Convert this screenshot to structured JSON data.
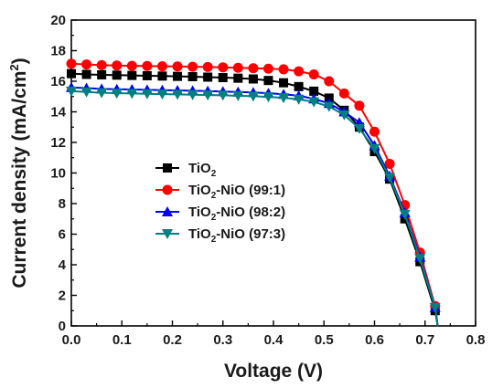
{
  "chart_data": {
    "type": "line",
    "xlabel": "Voltage (V)",
    "ylabel_main": "Current density (mA/cm",
    "ylabel_sup": "2",
    "ylabel_close": ")",
    "xlim": [
      0.0,
      0.8
    ],
    "ylim": [
      0,
      20
    ],
    "xticks": [
      "0.0",
      "0.1",
      "0.2",
      "0.3",
      "0.4",
      "0.5",
      "0.6",
      "0.7",
      "0.8"
    ],
    "yticks": [
      "0",
      "2",
      "4",
      "6",
      "8",
      "10",
      "12",
      "14",
      "16",
      "18",
      "20"
    ],
    "grid": false,
    "legend_position": "center-left",
    "series": [
      {
        "name": "TiO2",
        "legend_parts": [
          {
            "t": "TiO"
          },
          {
            "t": "2",
            "sub": true
          }
        ],
        "color": "#000000",
        "marker": "square",
        "x": [
          0.0,
          0.03,
          0.06,
          0.09,
          0.12,
          0.15,
          0.18,
          0.21,
          0.24,
          0.27,
          0.3,
          0.33,
          0.36,
          0.39,
          0.42,
          0.45,
          0.48,
          0.51,
          0.54,
          0.57,
          0.6,
          0.63,
          0.66,
          0.69,
          0.72,
          0.725
        ],
        "y": [
          16.5,
          16.45,
          16.42,
          16.4,
          16.38,
          16.36,
          16.34,
          16.32,
          16.3,
          16.27,
          16.24,
          16.2,
          16.15,
          16.05,
          15.9,
          15.65,
          15.35,
          14.9,
          14.1,
          13.0,
          11.4,
          9.6,
          7.0,
          4.2,
          1.0,
          0.0
        ]
      },
      {
        "name": "TiO2-NiO (99:1)",
        "legend_parts": [
          {
            "t": "TiO"
          },
          {
            "t": "2",
            "sub": true
          },
          {
            "t": "-NiO (99:1)"
          }
        ],
        "color": "#ff0000",
        "marker": "circle",
        "x": [
          0.0,
          0.03,
          0.06,
          0.09,
          0.12,
          0.15,
          0.18,
          0.21,
          0.24,
          0.27,
          0.3,
          0.33,
          0.36,
          0.39,
          0.42,
          0.45,
          0.48,
          0.51,
          0.54,
          0.57,
          0.6,
          0.63,
          0.66,
          0.69,
          0.72,
          0.725
        ],
        "y": [
          17.15,
          17.1,
          17.05,
          17.03,
          17.01,
          17.0,
          16.98,
          16.97,
          16.95,
          16.93,
          16.91,
          16.88,
          16.85,
          16.82,
          16.78,
          16.65,
          16.45,
          16.0,
          15.2,
          14.4,
          12.7,
          10.6,
          7.9,
          4.8,
          1.3,
          0.0
        ]
      },
      {
        "name": "TiO2-NiO (98:2)",
        "legend_parts": [
          {
            "t": "TiO"
          },
          {
            "t": "2",
            "sub": true
          },
          {
            "t": "-NiO (98:2)"
          }
        ],
        "color": "#0000ff",
        "marker": "triangle-up",
        "x": [
          0.0,
          0.03,
          0.06,
          0.09,
          0.12,
          0.15,
          0.18,
          0.21,
          0.24,
          0.27,
          0.3,
          0.33,
          0.36,
          0.39,
          0.42,
          0.45,
          0.48,
          0.51,
          0.54,
          0.57,
          0.6,
          0.63,
          0.66,
          0.69,
          0.72,
          0.725
        ],
        "y": [
          15.6,
          15.55,
          15.5,
          15.48,
          15.46,
          15.44,
          15.42,
          15.4,
          15.38,
          15.36,
          15.33,
          15.3,
          15.27,
          15.22,
          15.15,
          15.05,
          14.85,
          14.55,
          14.0,
          13.3,
          11.8,
          9.8,
          7.4,
          4.5,
          1.2,
          0.0
        ]
      },
      {
        "name": "TiO2-NiO (97:3)",
        "legend_parts": [
          {
            "t": "TiO"
          },
          {
            "t": "2",
            "sub": true
          },
          {
            "t": "-NiO (97:3)"
          }
        ],
        "color": "#008080",
        "marker": "triangle-down",
        "x": [
          0.0,
          0.03,
          0.06,
          0.09,
          0.12,
          0.15,
          0.18,
          0.21,
          0.24,
          0.27,
          0.3,
          0.33,
          0.36,
          0.39,
          0.42,
          0.45,
          0.48,
          0.51,
          0.54,
          0.57,
          0.6,
          0.63,
          0.66,
          0.69,
          0.72,
          0.725
        ],
        "y": [
          15.35,
          15.3,
          15.25,
          15.22,
          15.2,
          15.18,
          15.16,
          15.14,
          15.12,
          15.1,
          15.08,
          15.05,
          15.02,
          14.98,
          14.92,
          14.82,
          14.65,
          14.35,
          13.8,
          12.9,
          11.6,
          9.7,
          7.3,
          4.4,
          1.2,
          0.0
        ]
      }
    ]
  }
}
